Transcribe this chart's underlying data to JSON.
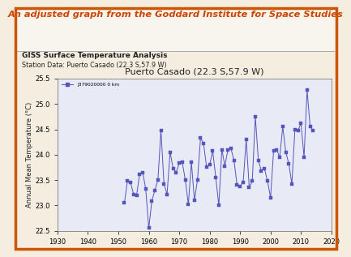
{
  "title_main": "An adjusted graph from the Goddard Institute for Space Studies",
  "subtitle1": "GISS Surface Temperature Analysis",
  "subtitle2": "Station Data: Puerto Casado (22.3 S,57.9 W)",
  "plot_title": "Puerto Casado (22.3 S,57.9 W)",
  "ylabel": "Annual Mean Temperature (°C)",
  "legend_label": "J379020000 0 km",
  "xlim": [
    1930,
    2020
  ],
  "ylim": [
    22.5,
    25.5
  ],
  "yticks": [
    22.5,
    23.0,
    23.5,
    24.0,
    24.5,
    25.0,
    25.5
  ],
  "xticks": [
    1930,
    1940,
    1950,
    1960,
    1970,
    1980,
    1990,
    2000,
    2010,
    2020
  ],
  "line_color": "#5555bb",
  "plot_bg": "#e8eaf5",
  "outer_bg": "#f5ede0",
  "border_color": "#cc5500",
  "title_color": "#cc4400",
  "subtitle_color": "#222222",
  "years": [
    1952,
    1953,
    1954,
    1955,
    1956,
    1957,
    1958,
    1959,
    1960,
    1961,
    1962,
    1963,
    1964,
    1965,
    1966,
    1967,
    1968,
    1969,
    1970,
    1971,
    1972,
    1973,
    1974,
    1975,
    1976,
    1977,
    1978,
    1979,
    1980,
    1981,
    1982,
    1983,
    1984,
    1985,
    1986,
    1987,
    1988,
    1989,
    1990,
    1991,
    1992,
    1993,
    1994,
    1995,
    1996,
    1997,
    1998,
    1999,
    2000,
    2001,
    2002,
    2003,
    2004,
    2005,
    2006,
    2007,
    2008,
    2009,
    2010,
    2011,
    2012,
    2013,
    2014
  ],
  "temps": [
    23.05,
    23.48,
    23.45,
    23.22,
    23.2,
    23.62,
    23.65,
    23.32,
    22.55,
    23.08,
    23.3,
    23.5,
    24.48,
    23.42,
    23.22,
    24.05,
    23.73,
    23.65,
    23.83,
    23.85,
    23.5,
    23.02,
    23.85,
    23.1,
    23.5,
    24.33,
    24.22,
    23.75,
    23.8,
    24.07,
    23.55,
    23.0,
    24.1,
    23.78,
    24.1,
    24.12,
    23.88,
    23.4,
    23.38,
    23.45,
    24.3,
    23.35,
    23.48,
    24.75,
    23.88,
    23.68,
    23.72,
    23.48,
    23.15,
    24.08,
    24.1,
    23.95,
    24.55,
    24.05,
    23.82,
    23.42,
    24.5,
    24.48,
    24.62,
    23.95,
    25.27,
    24.55,
    24.48
  ],
  "header_bg": "#f8f4ee",
  "divider_color": "#aaaaaa"
}
